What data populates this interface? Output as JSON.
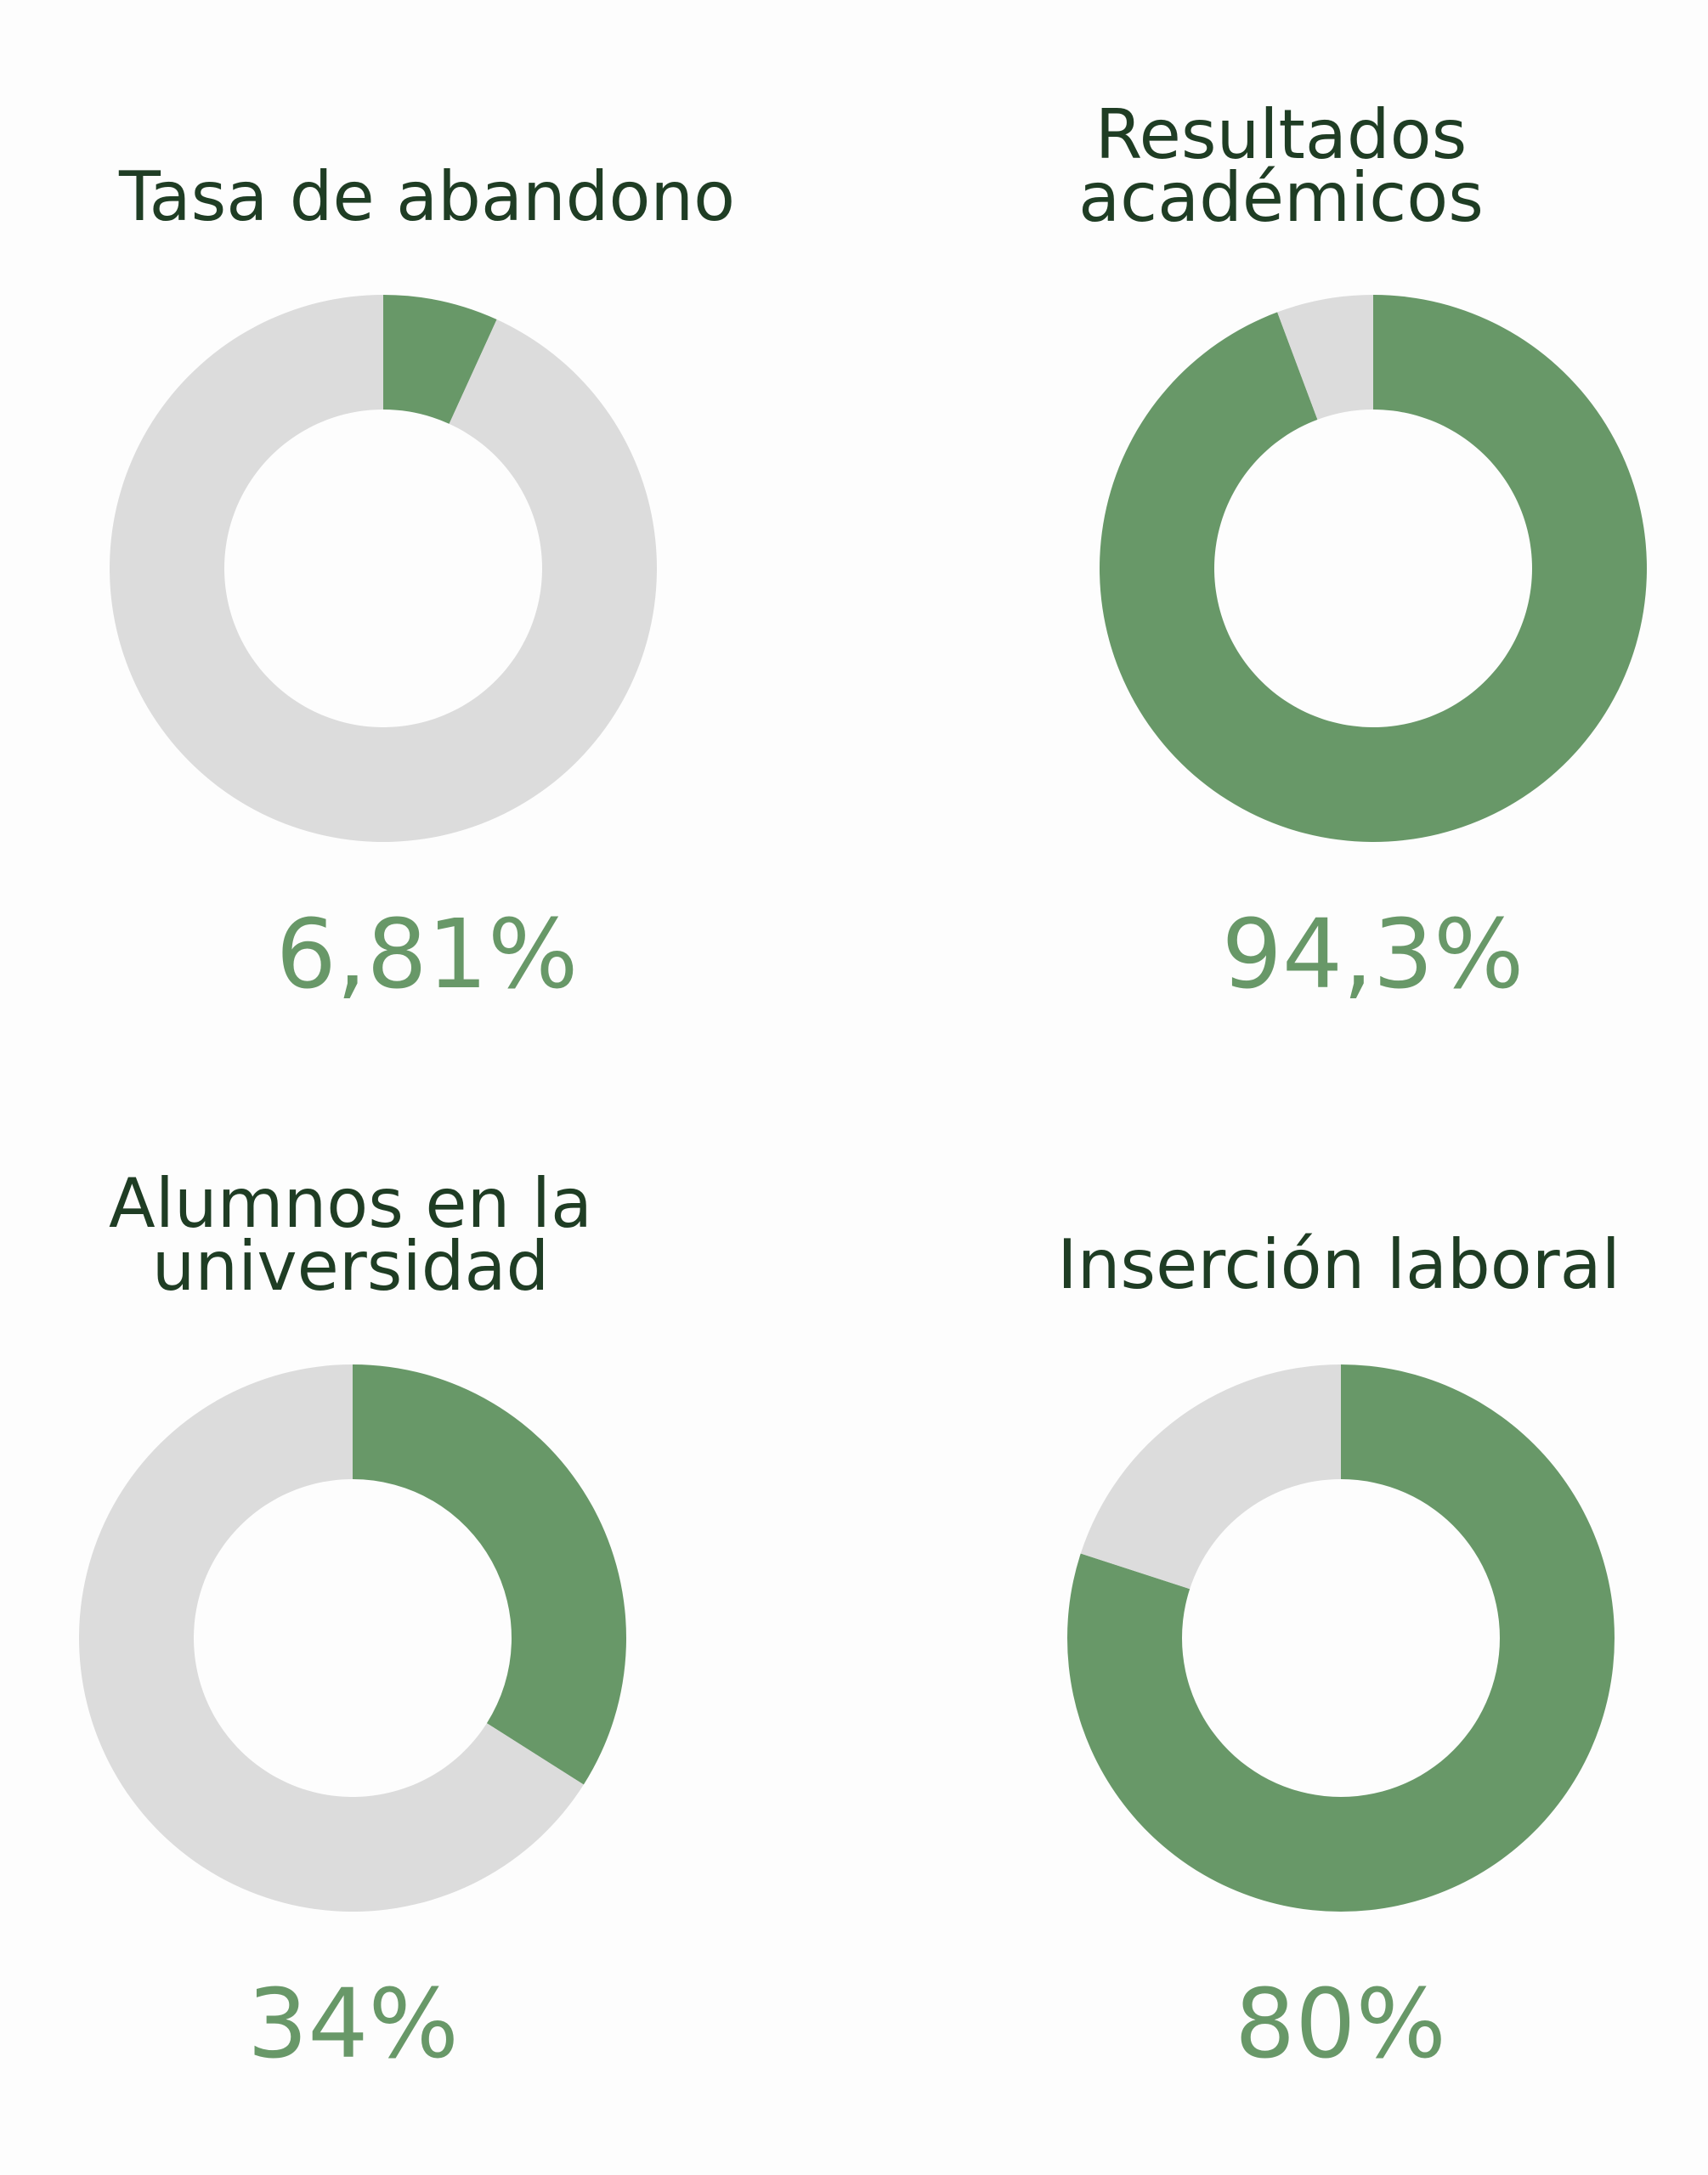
{
  "colors": {
    "filled": "#689868",
    "remaining": "#dcdcdc",
    "title": "#1f3d24",
    "value": "#689868"
  },
  "chart_data": [
    {
      "type": "pie",
      "variant": "donut",
      "title": "Tasa de abandono",
      "value": 6.81,
      "value_label": "6,81%",
      "max": 100
    },
    {
      "type": "pie",
      "variant": "donut",
      "title": "Resultados académicos",
      "title_lines": [
        "Resultados",
        "académicos"
      ],
      "value": 94.3,
      "value_label": "94,3%",
      "max": 100
    },
    {
      "type": "pie",
      "variant": "donut",
      "title": "Alumnos en la universidad",
      "title_lines": [
        "Alumnos en la",
        "universidad"
      ],
      "value": 34,
      "value_label": "34%",
      "max": 100
    },
    {
      "type": "pie",
      "variant": "donut",
      "title": "Inserción laboral",
      "value": 80,
      "value_label": "80%",
      "max": 100
    }
  ]
}
